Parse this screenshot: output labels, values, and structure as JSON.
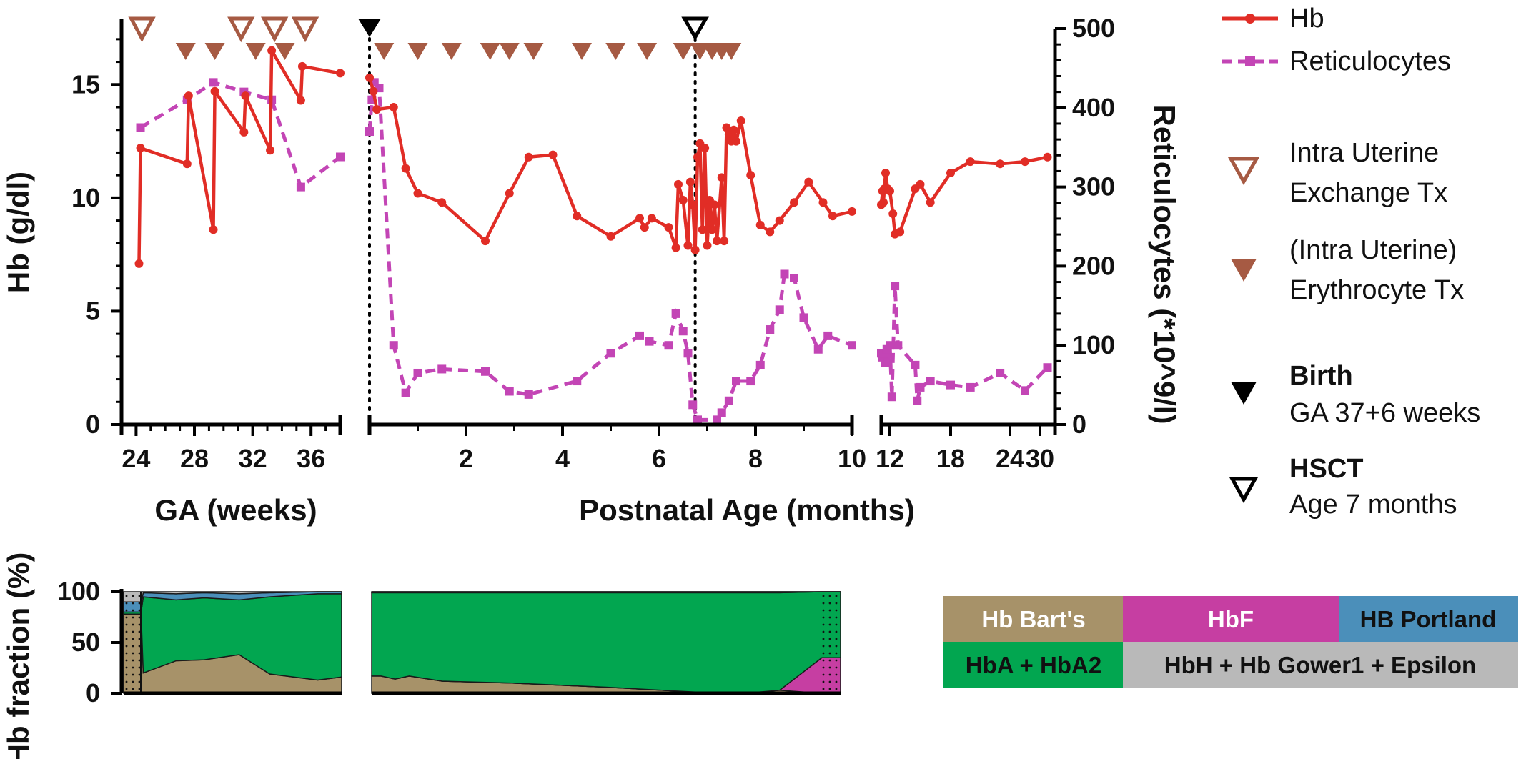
{
  "colors": {
    "hb": "#e12d26",
    "retic": "#c345b5",
    "transfusion": "#a65a43",
    "marker": "#000000",
    "hb_barts": "#a79269",
    "hbf": "#c63ea2",
    "hb_portland": "#4b8fba",
    "hba_hba2": "#02a650",
    "hbh_gower_epsilon": "#b9b9b9"
  },
  "chart_data": [
    {
      "type": "line",
      "panels": [
        {
          "name": "GA",
          "xlabel": "GA (weeks)",
          "xlim": [
            23,
            38
          ],
          "xticks": [
            "24",
            "28",
            "32",
            "36"
          ],
          "hb": [
            [
              24.2,
              7.1
            ],
            [
              24.3,
              12.2
            ],
            [
              27.5,
              11.5
            ],
            [
              27.6,
              14.5
            ],
            [
              29.3,
              8.6
            ],
            [
              29.4,
              14.7
            ],
            [
              31.4,
              12.9
            ],
            [
              31.5,
              14.5
            ],
            [
              33.2,
              12.1
            ],
            [
              33.3,
              16.5
            ],
            [
              35.3,
              14.3
            ],
            [
              35.4,
              15.8
            ],
            [
              38,
              15.5
            ]
          ],
          "retic": [
            [
              24.3,
              375
            ],
            [
              27.5,
              410
            ],
            [
              29.3,
              432
            ],
            [
              31.4,
              420
            ],
            [
              33.3,
              410
            ],
            [
              35.3,
              300
            ],
            [
              38,
              338
            ]
          ],
          "intrauterine_exchange_tx": [
            24.4,
            31.2,
            33.5,
            35.6
          ],
          "erythrocyte_tx": [
            27.4,
            29.4,
            32.2,
            34.2
          ]
        },
        {
          "name": "Postnatal",
          "xlabel": "Postnatal Age (months)",
          "xlim": [
            0,
            10
          ],
          "xticks": [
            "2",
            "4",
            "6",
            "8",
            "10"
          ],
          "hb": [
            [
              0,
              15.3
            ],
            [
              0.08,
              14.7
            ],
            [
              0.15,
              13.9
            ],
            [
              0.5,
              14
            ],
            [
              0.75,
              11.3
            ],
            [
              1,
              10.2
            ],
            [
              1.5,
              9.8
            ],
            [
              2.4,
              8.1
            ],
            [
              2.9,
              10.2
            ],
            [
              3.3,
              11.8
            ],
            [
              3.8,
              11.9
            ],
            [
              4.3,
              9.2
            ],
            [
              5,
              8.3
            ],
            [
              5.6,
              9.1
            ],
            [
              5.7,
              8.7
            ],
            [
              5.85,
              9.1
            ],
            [
              6.2,
              8.7
            ],
            [
              6.35,
              7.8
            ],
            [
              6.4,
              10.6
            ],
            [
              6.5,
              9.9
            ],
            [
              6.6,
              7.9
            ],
            [
              6.65,
              10.7
            ],
            [
              6.7,
              9.7
            ],
            [
              6.75,
              7.7
            ],
            [
              6.8,
              11.8
            ],
            [
              6.85,
              12.4
            ],
            [
              6.9,
              8.6
            ],
            [
              6.95,
              12.2
            ],
            [
              7,
              7.9
            ],
            [
              7.05,
              9.9
            ],
            [
              7.1,
              8.6
            ],
            [
              7.15,
              9.7
            ],
            [
              7.2,
              8.1
            ],
            [
              7.3,
              10.9
            ],
            [
              7.35,
              8.1
            ],
            [
              7.4,
              13.1
            ],
            [
              7.45,
              12.8
            ],
            [
              7.5,
              12.5
            ],
            [
              7.55,
              13
            ],
            [
              7.6,
              12.5
            ],
            [
              7.7,
              13.4
            ],
            [
              7.9,
              11
            ],
            [
              8.1,
              8.8
            ],
            [
              8.3,
              8.5
            ],
            [
              8.5,
              9
            ],
            [
              8.8,
              9.8
            ],
            [
              9.1,
              10.7
            ],
            [
              9.4,
              9.8
            ],
            [
              9.6,
              9.2
            ],
            [
              10,
              9.4
            ]
          ],
          "retic": [
            [
              0,
              370
            ],
            [
              0.05,
              410
            ],
            [
              0.1,
              432
            ],
            [
              0.2,
              425
            ],
            [
              0.5,
              100
            ],
            [
              0.75,
              40
            ],
            [
              1,
              65
            ],
            [
              1.5,
              70
            ],
            [
              2.4,
              67
            ],
            [
              2.9,
              42
            ],
            [
              3.3,
              38
            ],
            [
              4.3,
              55
            ],
            [
              5,
              90
            ],
            [
              5.6,
              112
            ],
            [
              5.8,
              105
            ],
            [
              6.2,
              100
            ],
            [
              6.35,
              140
            ],
            [
              6.5,
              118
            ],
            [
              6.6,
              90
            ],
            [
              6.7,
              25
            ],
            [
              6.8,
              6
            ],
            [
              7.2,
              6
            ],
            [
              7.3,
              15
            ],
            [
              7.45,
              30
            ],
            [
              7.6,
              55
            ],
            [
              7.9,
              55
            ],
            [
              8.1,
              75
            ],
            [
              8.3,
              120
            ],
            [
              8.5,
              145
            ],
            [
              8.6,
              190
            ],
            [
              8.8,
              185
            ],
            [
              9,
              135
            ],
            [
              9.3,
              95
            ],
            [
              9.5,
              112
            ],
            [
              10,
              100
            ]
          ],
          "birth": 0,
          "hsct": 6.75,
          "erythrocyte_tx": [
            0.3,
            1,
            1.7,
            2.5,
            2.9,
            3.4,
            4.4,
            5.1,
            5.75,
            6.5,
            6.85,
            7.1,
            7.3,
            7.5
          ]
        },
        {
          "name": "Late",
          "xlim": [
            10,
            32
          ],
          "xticks": [
            "12",
            "18",
            "24",
            "30"
          ],
          "hb": [
            [
              10,
              9.7
            ],
            [
              10.3,
              10.3
            ],
            [
              10.5,
              9.8
            ],
            [
              10.7,
              10.4
            ],
            [
              11,
              11.1
            ],
            [
              11.5,
              10.4
            ],
            [
              12,
              10.3
            ],
            [
              12.3,
              9.3
            ],
            [
              12.5,
              8.4
            ],
            [
              13,
              8.5
            ],
            [
              14.5,
              10.4
            ],
            [
              15,
              10.6
            ],
            [
              16,
              9.8
            ],
            [
              18,
              11.1
            ],
            [
              20,
              11.6
            ],
            [
              23,
              11.5
            ],
            [
              27,
              11.6
            ],
            [
              31,
              11.8
            ]
          ],
          "retic": [
            [
              10,
              90
            ],
            [
              10.3,
              85
            ],
            [
              10.6,
              90
            ],
            [
              11,
              78
            ],
            [
              11.3,
              95
            ],
            [
              11.6,
              78
            ],
            [
              12,
              100
            ],
            [
              12.2,
              35
            ],
            [
              12.5,
              175
            ],
            [
              12.8,
              100
            ],
            [
              14.5,
              75
            ],
            [
              14.7,
              30
            ],
            [
              15,
              47
            ],
            [
              16,
              55
            ],
            [
              18,
              50
            ],
            [
              20,
              47
            ],
            [
              23,
              65
            ],
            [
              27,
              43
            ],
            [
              31,
              72
            ]
          ]
        }
      ],
      "y_left": {
        "label": "Hb (g/dl)",
        "ylim": [
          0,
          17.5
        ],
        "ticks": [
          "0",
          "5",
          "10",
          "15"
        ]
      },
      "y_right": {
        "label": "Reticulocytes (*10^9/l)",
        "ylim": [
          0,
          500
        ],
        "ticks": [
          "0",
          "100",
          "200",
          "300",
          "400",
          "500"
        ]
      }
    },
    {
      "type": "area",
      "y_label": "Hb fraction (%)",
      "ylim": [
        0,
        100
      ],
      "yticks": [
        "0",
        "50",
        "100"
      ],
      "panel_ga": {
        "x": [
          0,
          0.04,
          0.08,
          0.09,
          0.24,
          0.37,
          0.53,
          0.67,
          0.89,
          1
        ],
        "hb_barts": [
          78,
          78,
          78,
          20,
          32,
          33,
          38,
          19,
          13,
          16
        ],
        "hba_hba2": [
          2,
          2,
          2,
          75,
          60,
          61,
          54,
          76,
          85,
          82
        ],
        "hb_portland": [
          10,
          10,
          10,
          4,
          6,
          5,
          6,
          4,
          2,
          2
        ],
        "hbh_gower_epsilon": [
          10,
          10,
          10,
          1,
          2,
          1,
          2,
          1,
          0,
          0
        ]
      },
      "panel_postnatal": {
        "x": [
          0,
          0.02,
          0.05,
          0.08,
          0.15,
          0.3,
          0.5,
          0.7,
          0.82,
          0.87,
          0.96,
          1
        ],
        "hb_barts": [
          17,
          17,
          14,
          17,
          12,
          10,
          6,
          1,
          1,
          3,
          0,
          0
        ],
        "hbf": [
          0,
          0,
          0,
          0,
          0,
          0,
          0,
          0,
          0,
          0,
          35,
          35
        ],
        "hba_hba2": [
          82,
          82,
          85,
          82,
          87,
          89,
          93,
          98,
          98,
          96,
          65,
          65
        ],
        "hb_portland": [
          1,
          1,
          1,
          1,
          1,
          1,
          1,
          1,
          1,
          1,
          0,
          0
        ],
        "hbh_gower_epsilon": [
          0,
          0,
          0,
          0,
          0,
          0,
          0,
          0,
          0,
          0,
          0,
          0
        ]
      }
    }
  ],
  "legend": {
    "hb": "Hb",
    "retic": "Reticulocytes",
    "iu_exchange_1": "Intra Uterine",
    "iu_exchange_2": "Exchange Tx",
    "ery_1": "(Intra  Uterine)",
    "ery_2": "Erythrocyte Tx",
    "birth_title": "Birth",
    "birth_sub": "GA 37+6 weeks",
    "hsct_title": "HSCT",
    "hsct_sub": "Age 7 months"
  },
  "fraction_key": {
    "hb_barts": "Hb  Bart's",
    "hbf": "HbF",
    "hb_portland": "HB Portland",
    "hba_hba2": "HbA + HbA2",
    "hbh_gower_epsilon": "HbH + Hb Gower1 + Epsilon"
  }
}
